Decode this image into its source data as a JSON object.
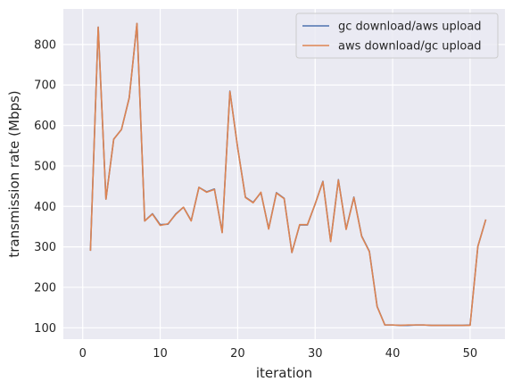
{
  "chart_data": {
    "type": "line",
    "title": "",
    "xlabel": "iteration",
    "ylabel": "transmission rate (Mbps)",
    "xlim": [
      -2.5,
      54.5
    ],
    "ylim": [
      72,
      888
    ],
    "xticks": [
      0,
      10,
      20,
      30,
      40,
      50
    ],
    "yticks": [
      100,
      200,
      300,
      400,
      500,
      600,
      700,
      800
    ],
    "grid": true,
    "legend_position": "top-right",
    "x": [
      1,
      2,
      3,
      4,
      5,
      6,
      7,
      8,
      9,
      10,
      11,
      12,
      13,
      14,
      15,
      16,
      17,
      18,
      19,
      20,
      21,
      22,
      23,
      24,
      25,
      26,
      27,
      28,
      29,
      30,
      31,
      32,
      33,
      34,
      35,
      36,
      37,
      38,
      39,
      40,
      41,
      42,
      43,
      44,
      45,
      46,
      47,
      48,
      49,
      50,
      51,
      52
    ],
    "series": [
      {
        "name": "gc download/aws upload",
        "color": "#4c72b0",
        "values": [
          292,
          843,
          418,
          566,
          590,
          668,
          852,
          364,
          382,
          355,
          356,
          381,
          398,
          365,
          447,
          436,
          443,
          336,
          685,
          545,
          423,
          410,
          434,
          345,
          434,
          420,
          286,
          354,
          354,
          406,
          462,
          314,
          466,
          344,
          423,
          327,
          289,
          153,
          107,
          107,
          106,
          106,
          107,
          107,
          106,
          106,
          106,
          106,
          106,
          107,
          301,
          366
        ]
      },
      {
        "name": "aws download/gc upload",
        "color": "#dd8452",
        "values": [
          292,
          843,
          418,
          566,
          590,
          668,
          852,
          364,
          381,
          353,
          357,
          380,
          398,
          364,
          447,
          435,
          442,
          335,
          684,
          545,
          422,
          409,
          435,
          344,
          433,
          419,
          286,
          355,
          355,
          406,
          461,
          313,
          465,
          343,
          422,
          326,
          288,
          152,
          107,
          107,
          106,
          107,
          107,
          107,
          106,
          106,
          106,
          106,
          106,
          106,
          301,
          366
        ]
      }
    ]
  }
}
